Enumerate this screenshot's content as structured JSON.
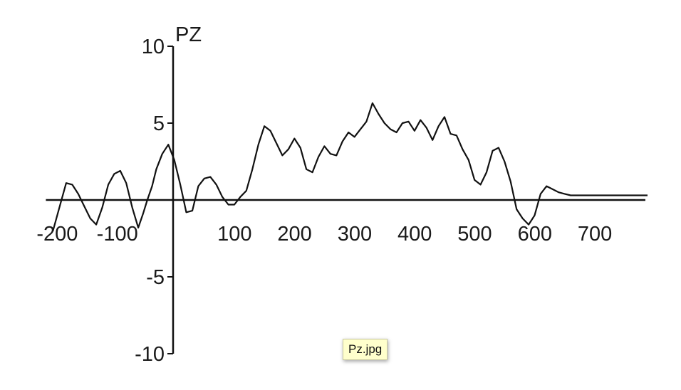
{
  "chart_data": {
    "type": "line",
    "title": "PZ",
    "xlabel": "",
    "ylabel": "",
    "xlim": [
      -200,
      790
    ],
    "ylim": [
      -10,
      10
    ],
    "x_ticks": [
      "-200",
      "-100",
      "100",
      "200",
      "300",
      "400",
      "500",
      "600",
      "700"
    ],
    "y_ticks": [
      "10",
      "5",
      "-5",
      "-10"
    ],
    "grid": false,
    "x": [
      -200,
      -188,
      -178,
      -168,
      -158,
      -148,
      -138,
      -128,
      -118,
      -108,
      -98,
      -88,
      -78,
      -68,
      -58,
      -50,
      -43,
      -35,
      -28,
      -18,
      -8,
      2,
      12,
      22,
      32,
      42,
      52,
      62,
      72,
      82,
      92,
      102,
      112,
      122,
      132,
      142,
      152,
      162,
      172,
      182,
      192,
      202,
      212,
      222,
      232,
      242,
      252,
      262,
      272,
      282,
      292,
      302,
      312,
      322,
      332,
      342,
      352,
      362,
      372,
      382,
      392,
      402,
      412,
      422,
      432,
      442,
      452,
      462,
      472,
      482,
      492,
      502,
      512,
      522,
      532,
      542,
      552,
      562,
      572,
      582,
      592,
      602,
      612,
      622,
      632,
      642,
      652,
      662,
      672,
      682,
      692,
      702,
      712,
      722,
      732,
      742,
      752,
      762,
      772,
      782,
      790
    ],
    "y": [
      -2.0,
      -0.3,
      1.1,
      1.0,
      0.4,
      -0.4,
      -1.2,
      -1.6,
      -0.5,
      1.0,
      1.7,
      1.9,
      1.1,
      -0.5,
      -1.8,
      -0.9,
      0.0,
      0.9,
      2.0,
      3.0,
      3.6,
      2.6,
      1.0,
      -0.8,
      -0.7,
      0.9,
      1.4,
      1.5,
      1.0,
      0.2,
      -0.3,
      -0.3,
      0.2,
      0.6,
      2.0,
      3.6,
      4.8,
      4.5,
      3.7,
      2.9,
      3.3,
      4.0,
      3.4,
      2.0,
      1.8,
      2.8,
      3.5,
      3.0,
      2.9,
      3.8,
      4.4,
      4.1,
      4.6,
      5.1,
      6.3,
      5.6,
      5.0,
      4.6,
      4.4,
      5.0,
      5.1,
      4.5,
      5.2,
      4.7,
      3.9,
      4.8,
      5.4,
      4.3,
      4.2,
      3.3,
      2.6,
      1.3,
      1.0,
      1.8,
      3.2,
      3.4,
      2.5,
      1.2,
      -0.6,
      -1.2,
      -1.6,
      -1.0,
      0.4,
      0.9,
      0.7,
      0.5,
      0.4,
      0.3,
      0.3,
      0.3,
      0.3,
      0.3,
      0.3,
      0.3,
      0.3,
      0.3,
      0.3,
      0.3,
      0.3,
      0.3,
      0.3
    ],
    "line_color": "#111111"
  },
  "tooltip": {
    "text": "Pz.jpg"
  }
}
